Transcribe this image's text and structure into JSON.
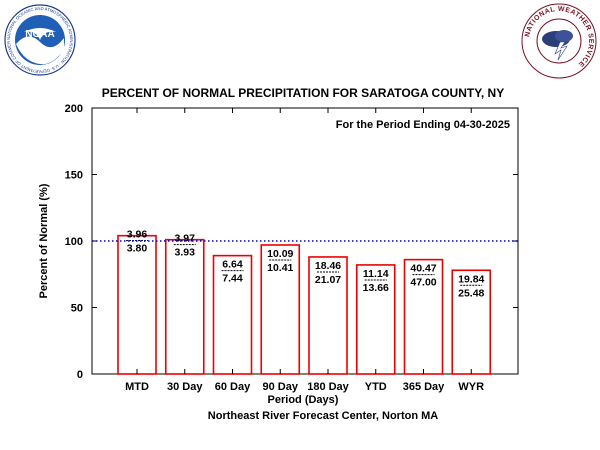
{
  "logos": {
    "noaa_text": "NOAA",
    "noaa_ring_text": "NATIONAL OCEANIC AND ATMOSPHERIC ADMINISTRATION · U.S. DEPARTMENT OF COMMERCE",
    "nws_ring_text": "NATIONAL WEATHER SERVICE"
  },
  "chart_data": {
    "type": "bar",
    "title": "PERCENT OF NORMAL PRECIPITATION FOR SARATOGA COUNTY, NY",
    "annotation": "For the Period Ending 04-30-2025",
    "xlabel": "Period (Days)",
    "ylabel": "Percent of Normal (%)",
    "credit": "Northeast River Forecast Center, Norton MA",
    "ylim": [
      0,
      200
    ],
    "yticks": [
      "0",
      "50",
      "100",
      "150",
      "200"
    ],
    "reference_line": 100,
    "categories": [
      "MTD",
      "30 Day",
      "60 Day",
      "90 Day",
      "180 Day",
      "YTD",
      "365 Day",
      "WYR"
    ],
    "values": [
      104,
      101,
      89,
      97,
      88,
      82,
      86,
      78
    ],
    "observed": [
      "3.96",
      "3.97",
      "6.64",
      "10.09",
      "18.46",
      "11.14",
      "40.47",
      "19.84"
    ],
    "normal": [
      "3.80",
      "3.93",
      "7.44",
      "10.41",
      "21.07",
      "13.66",
      "47.00",
      "25.48"
    ],
    "colors": {
      "bar": "#ee0000",
      "reference": "#0000cc",
      "axis": "#000000"
    }
  }
}
